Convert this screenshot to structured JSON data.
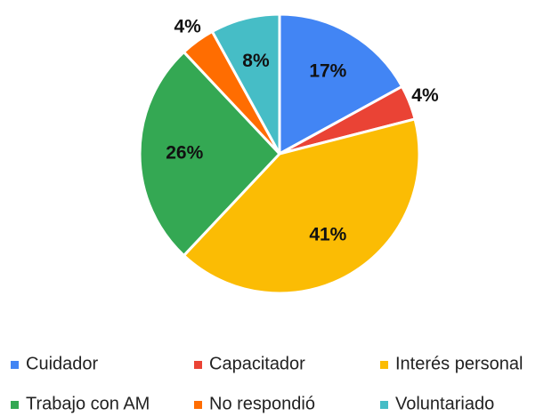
{
  "chart_data": {
    "type": "pie",
    "categories": [
      "Cuidador",
      "Capacitador",
      "Interés personal",
      "Trabajo con AM",
      "No respondió",
      "Voluntariado"
    ],
    "values": [
      17,
      4,
      41,
      26,
      4,
      8
    ],
    "value_labels": [
      "17%",
      "4%",
      "41%",
      "26%",
      "4%",
      "8%"
    ],
    "colors": [
      "#4285f4",
      "#ea4335",
      "#fbbc04",
      "#34a853",
      "#ff6d01",
      "#46bdc6"
    ],
    "legend": "bottom"
  }
}
